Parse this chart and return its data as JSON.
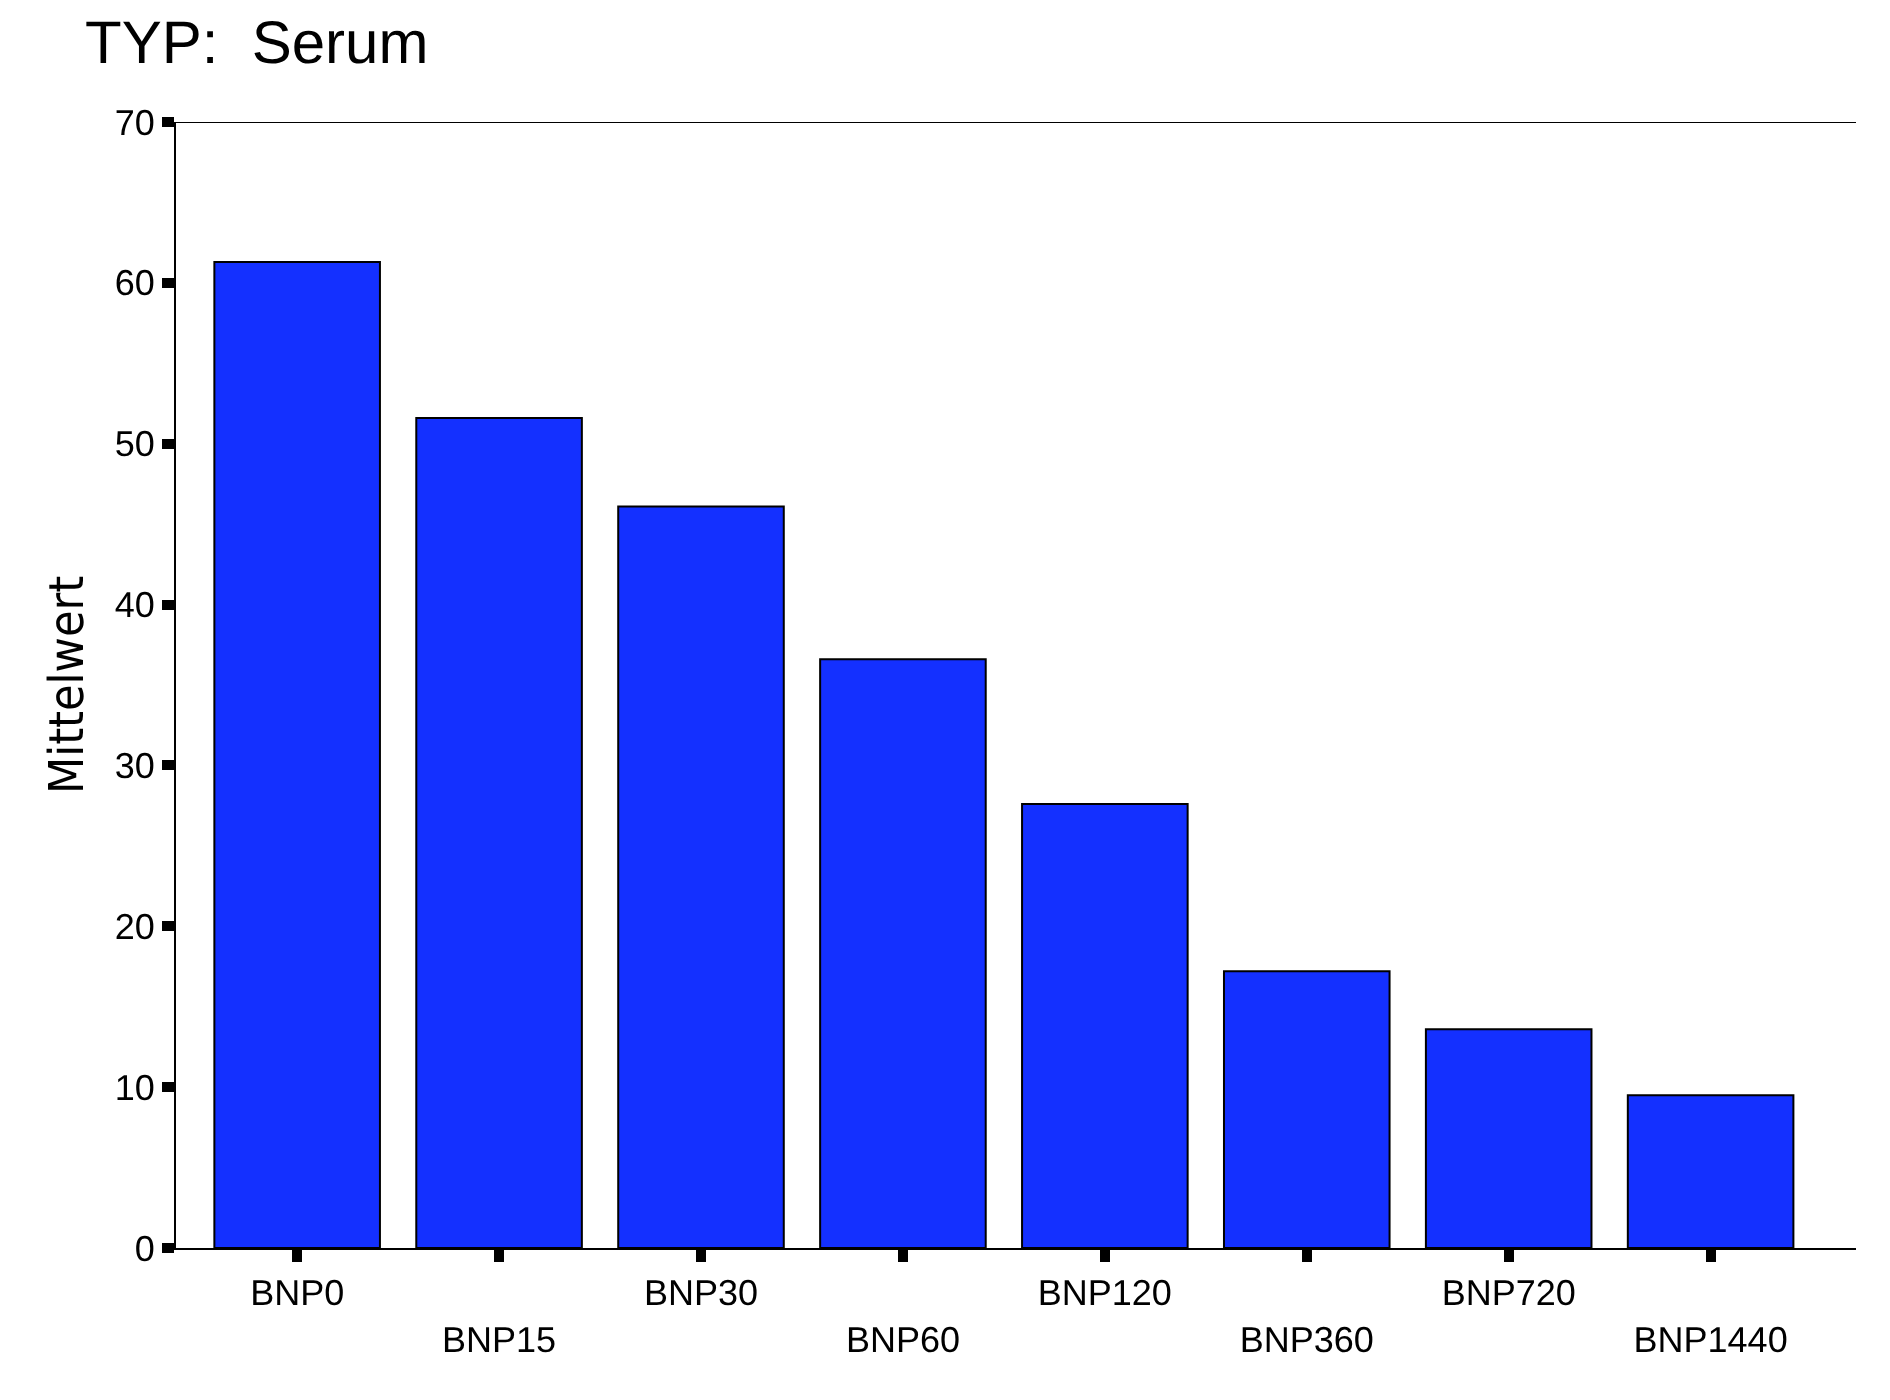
{
  "chart_data": {
    "type": "bar",
    "title": "TYP:  Serum",
    "ylabel": "Mittelwert",
    "categories": [
      "BNP0",
      "BNP15",
      "BNP30",
      "BNP60",
      "BNP120",
      "BNP360",
      "BNP720",
      "BNP1440"
    ],
    "values": [
      61.3,
      51.6,
      46.1,
      36.6,
      27.6,
      17.2,
      13.6,
      9.5
    ],
    "color": "#1430ff",
    "ylim": [
      0,
      70
    ],
    "yticks": [
      0,
      10,
      20,
      30,
      40,
      50,
      60,
      70
    ],
    "grid": false,
    "legend": false
  }
}
